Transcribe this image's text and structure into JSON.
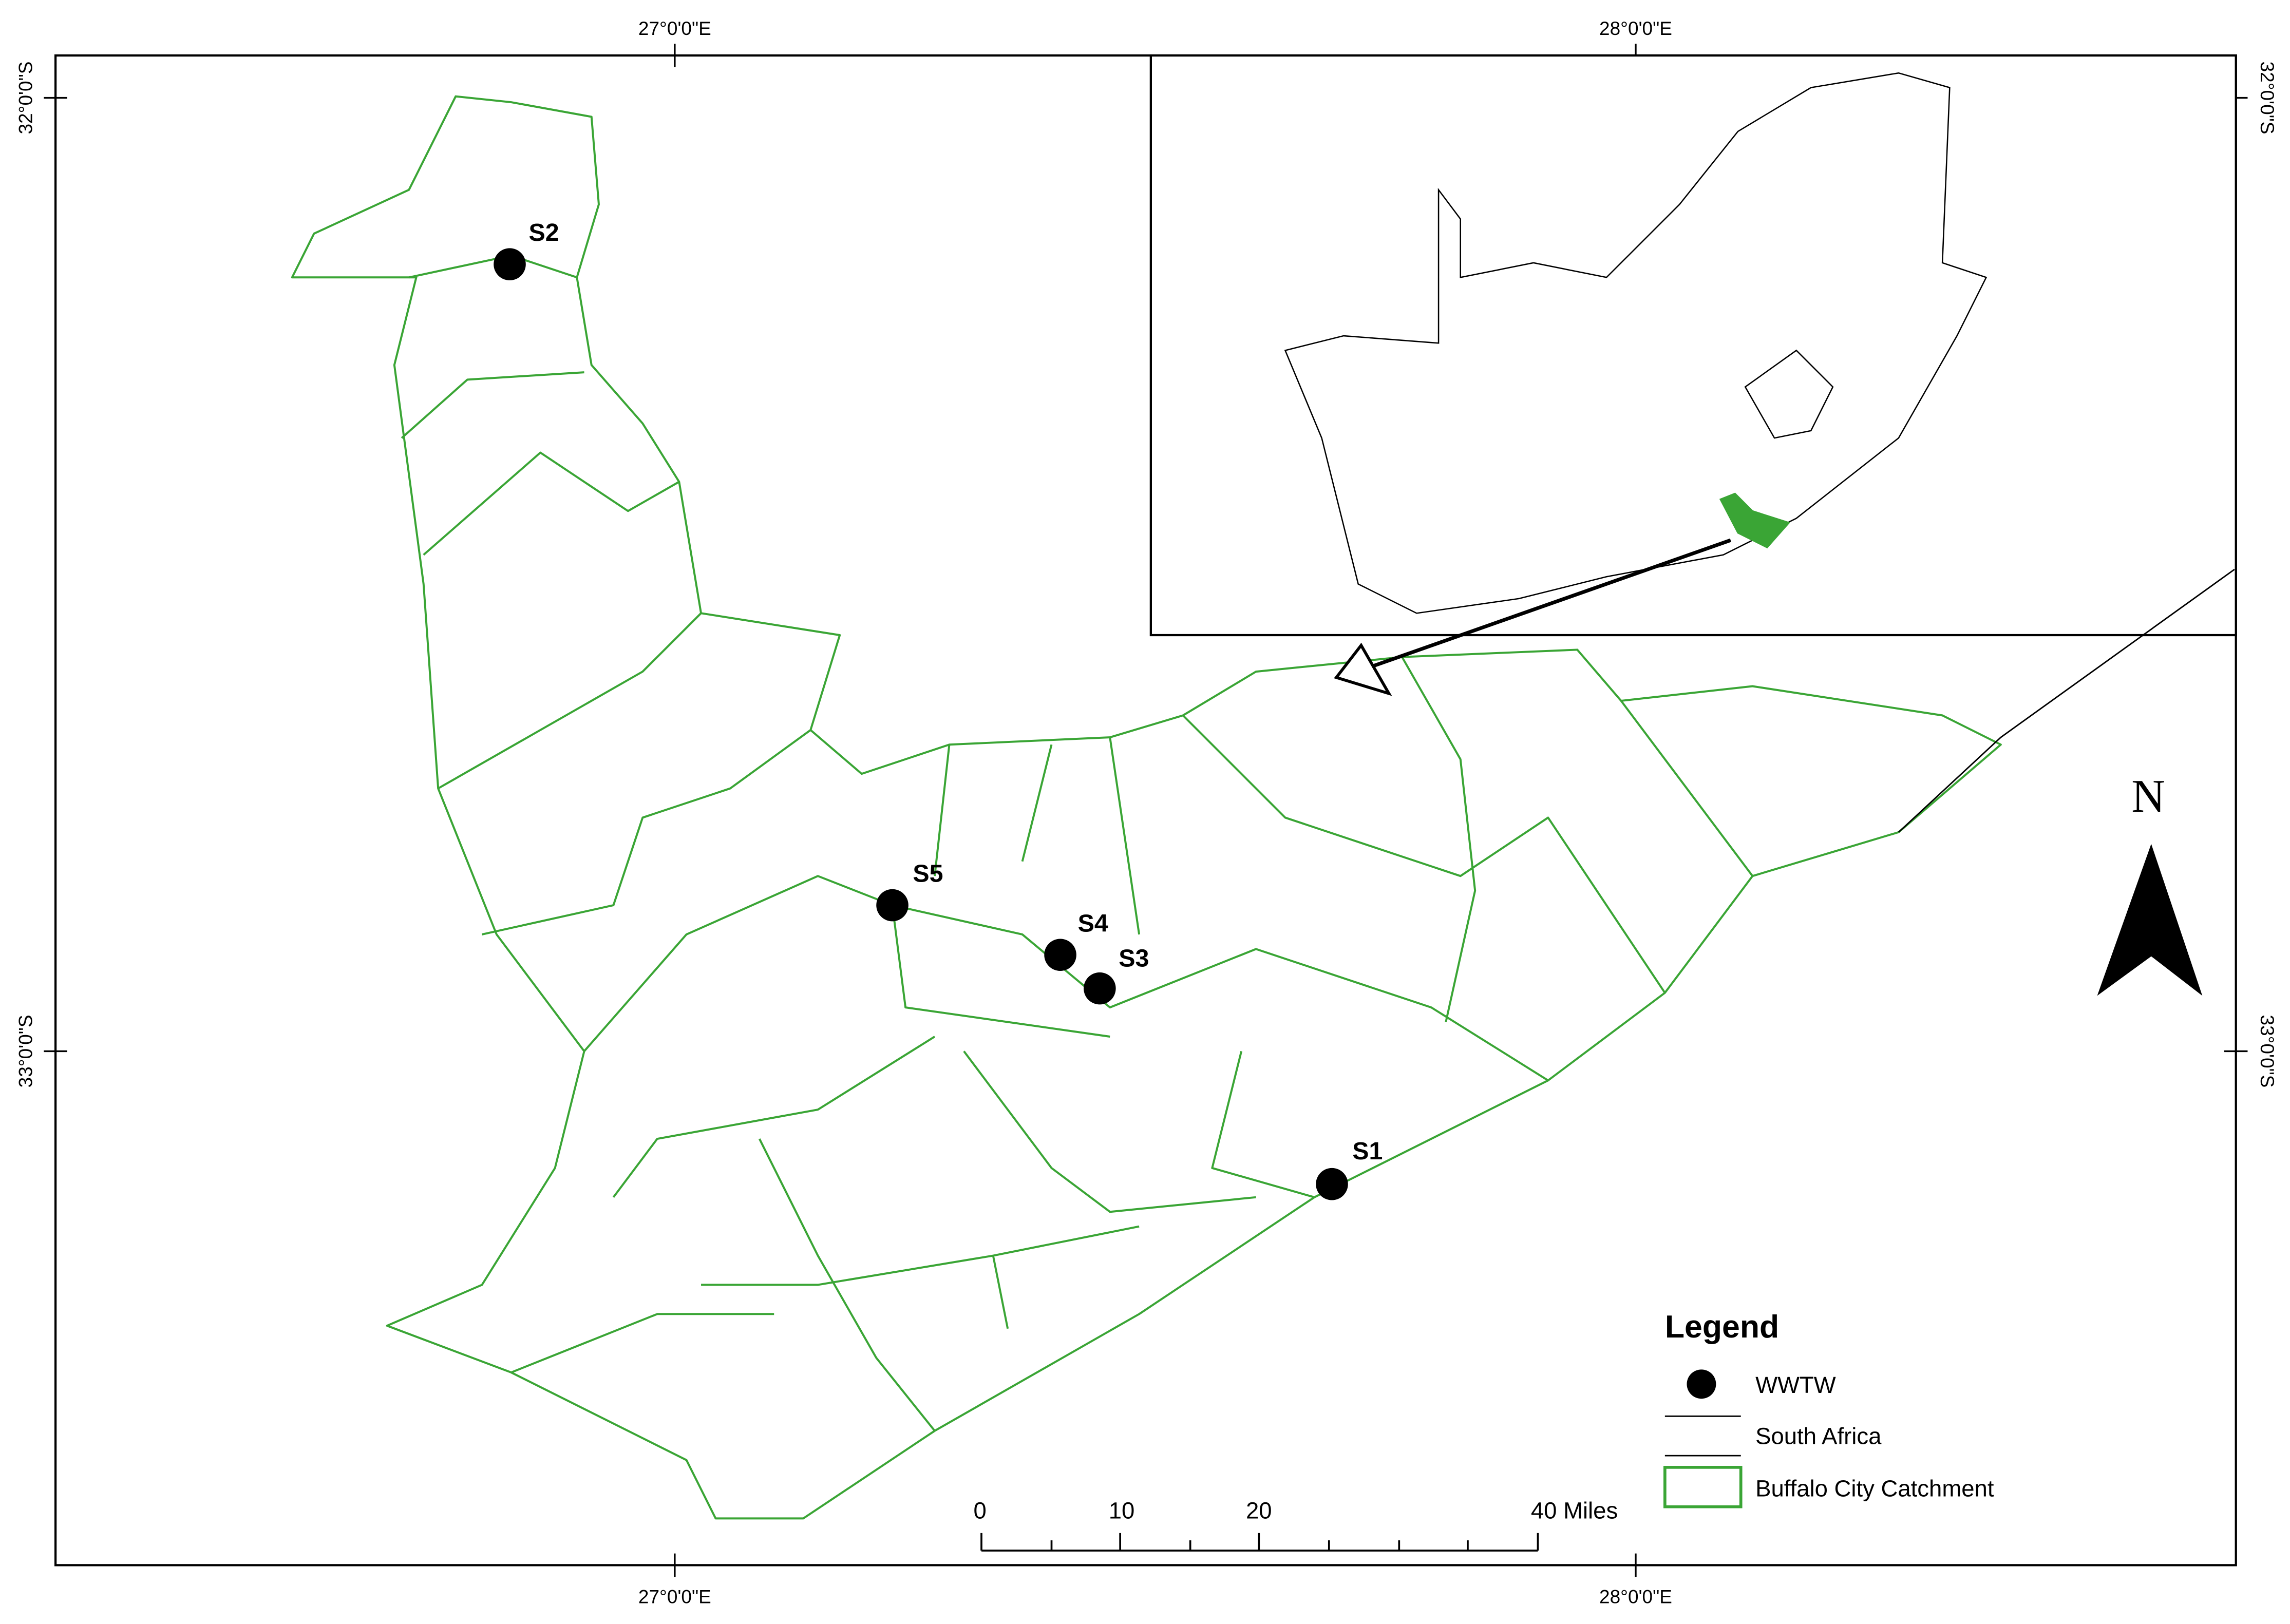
{
  "graticule": {
    "top": [
      "27°0'0\"E",
      "28°0'0\"E"
    ],
    "bottom": [
      "27°0'0\"E",
      "28°0'0\"E"
    ],
    "left": [
      "32°0'0\"S",
      "33°0'0\"S"
    ],
    "right": [
      "32°0'0\"S",
      "33°0'0\"S"
    ]
  },
  "sites": [
    {
      "label": "S1"
    },
    {
      "label": "S2"
    },
    {
      "label": "S3"
    },
    {
      "label": "S4"
    },
    {
      "label": "S5"
    }
  ],
  "north_arrow": {
    "label": "N"
  },
  "legend": {
    "title": "Legend",
    "items": [
      "WWTW",
      "South Africa",
      "Buffalo City Catchment"
    ]
  },
  "scale_bar": {
    "labels": [
      "0",
      "10",
      "20",
      "40 Miles"
    ]
  }
}
